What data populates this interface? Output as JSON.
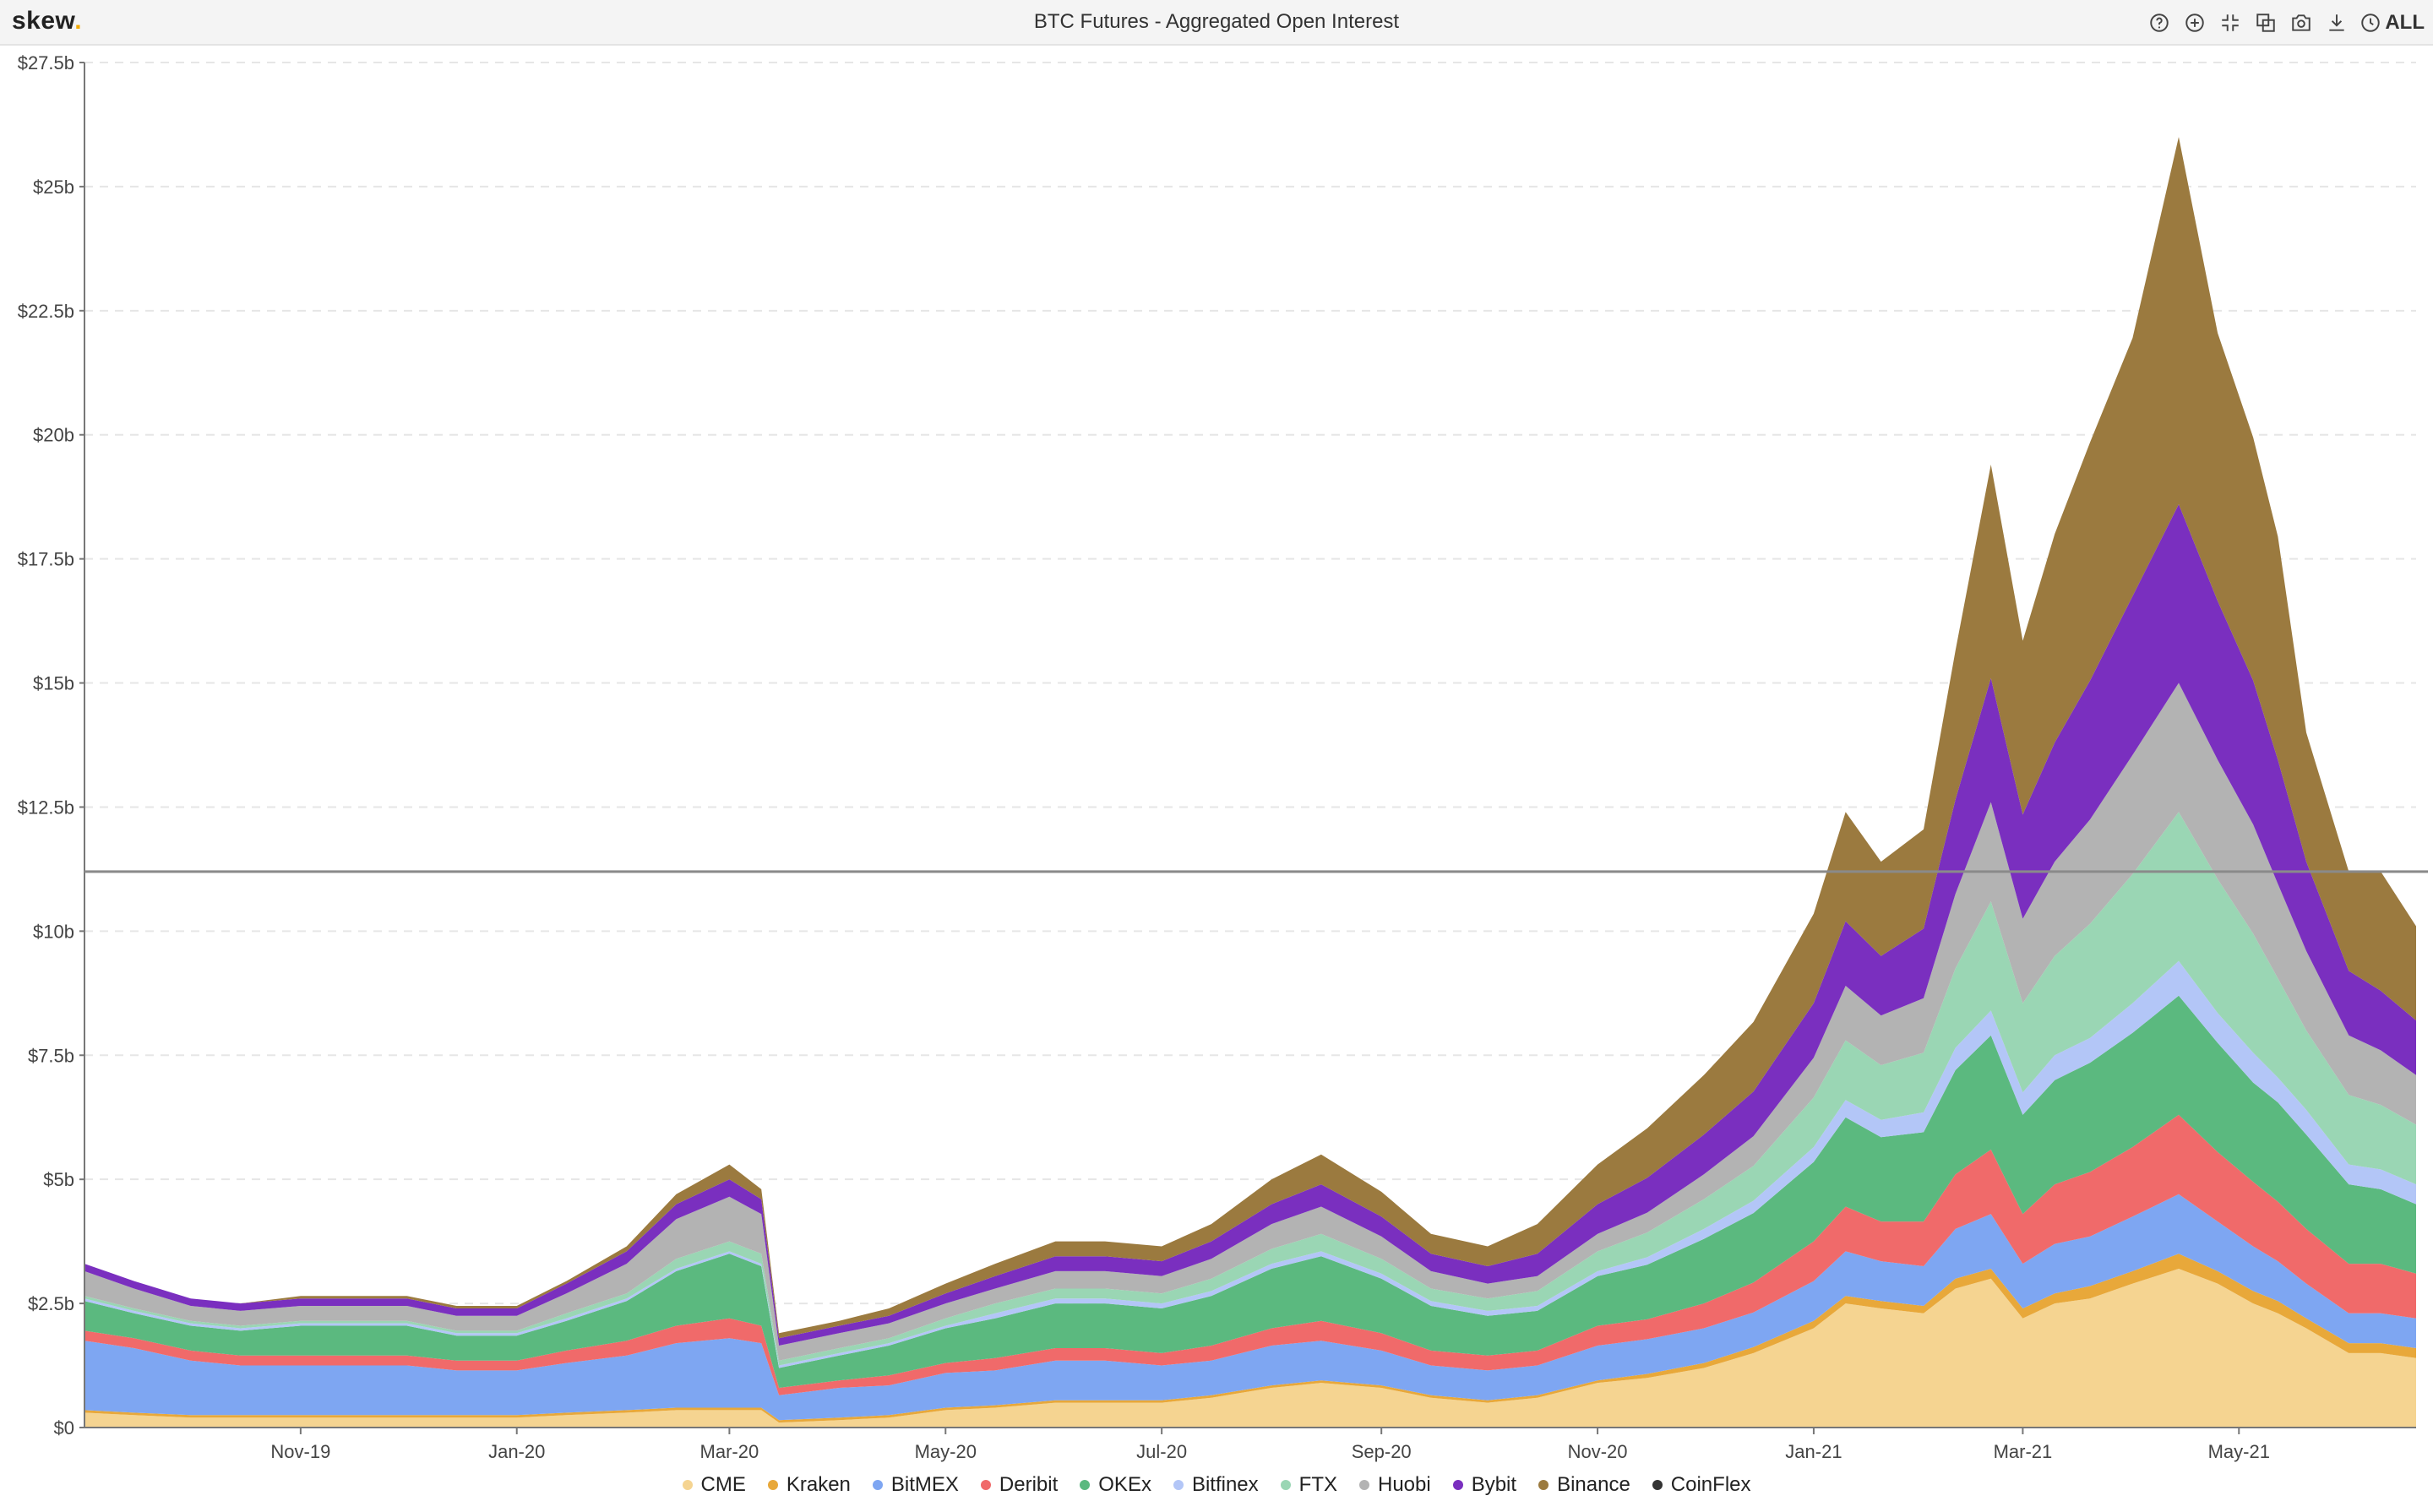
{
  "header": {
    "logo_text": "skew",
    "logo_dot": ".",
    "title": "BTC Futures - Aggregated Open Interest",
    "toolbar_icons": [
      "help-icon",
      "zoom-in-icon",
      "collapse-icon",
      "compare-icon",
      "camera-icon",
      "download-icon"
    ],
    "range_label": "ALL"
  },
  "chart_data": {
    "type": "area",
    "stacked": true,
    "title": "BTC Futures - Aggregated Open Interest",
    "y_ticks": [
      "$0",
      "$2.5b",
      "$5b",
      "$7.5b",
      "$10b",
      "$12.5b",
      "$15b",
      "$17.5b",
      "$20b",
      "$22.5b",
      "$25b",
      "$27.5b"
    ],
    "ylim": [
      0,
      27.5
    ],
    "y_unit": "$b",
    "x_ticks": [
      "Nov-19",
      "Jan-20",
      "Mar-20",
      "May-20",
      "Jul-20",
      "Sep-20",
      "Nov-20",
      "Jan-21",
      "Mar-21",
      "May-21"
    ],
    "x_range": [
      "2019-09-01",
      "2021-06-20"
    ],
    "reference_line": 11.2,
    "grid": true,
    "legend_position": "bottom",
    "x": [
      "2019-09-01",
      "2019-09-15",
      "2019-10-01",
      "2019-10-15",
      "2019-11-01",
      "2019-11-15",
      "2019-12-01",
      "2019-12-15",
      "2020-01-01",
      "2020-01-15",
      "2020-02-01",
      "2020-02-15",
      "2020-03-01",
      "2020-03-10",
      "2020-03-15",
      "2020-04-01",
      "2020-04-15",
      "2020-05-01",
      "2020-05-15",
      "2020-06-01",
      "2020-06-15",
      "2020-07-01",
      "2020-07-15",
      "2020-08-01",
      "2020-08-15",
      "2020-09-01",
      "2020-09-15",
      "2020-10-01",
      "2020-10-15",
      "2020-11-01",
      "2020-11-15",
      "2020-12-01",
      "2020-12-15",
      "2021-01-01",
      "2021-01-10",
      "2021-01-20",
      "2021-02-01",
      "2021-02-10",
      "2021-02-20",
      "2021-03-01",
      "2021-03-10",
      "2021-03-20",
      "2021-04-01",
      "2021-04-14",
      "2021-04-25",
      "2021-05-05",
      "2021-05-12",
      "2021-05-20",
      "2021-06-01",
      "2021-06-10",
      "2021-06-20"
    ],
    "series": [
      {
        "name": "CME",
        "color": "#f5d491",
        "values": [
          0.3,
          0.25,
          0.2,
          0.2,
          0.2,
          0.2,
          0.2,
          0.2,
          0.2,
          0.25,
          0.3,
          0.35,
          0.35,
          0.35,
          0.1,
          0.15,
          0.2,
          0.35,
          0.4,
          0.5,
          0.5,
          0.5,
          0.6,
          0.8,
          0.9,
          0.8,
          0.6,
          0.5,
          0.6,
          0.9,
          1.0,
          1.2,
          1.5,
          2.0,
          2.5,
          2.4,
          2.3,
          2.8,
          3.0,
          2.2,
          2.5,
          2.6,
          2.9,
          3.2,
          2.9,
          2.5,
          2.3,
          2.0,
          1.5,
          1.5,
          1.4
        ]
      },
      {
        "name": "Kraken",
        "color": "#e8a83a",
        "values": [
          0.05,
          0.05,
          0.05,
          0.05,
          0.05,
          0.05,
          0.05,
          0.05,
          0.05,
          0.05,
          0.05,
          0.05,
          0.05,
          0.05,
          0.05,
          0.05,
          0.05,
          0.05,
          0.05,
          0.05,
          0.05,
          0.05,
          0.05,
          0.05,
          0.05,
          0.05,
          0.05,
          0.05,
          0.05,
          0.05,
          0.08,
          0.1,
          0.12,
          0.15,
          0.15,
          0.15,
          0.15,
          0.2,
          0.2,
          0.2,
          0.2,
          0.25,
          0.25,
          0.3,
          0.25,
          0.25,
          0.25,
          0.2,
          0.2,
          0.2,
          0.2
        ]
      },
      {
        "name": "BitMEX",
        "color": "#7ea6f2",
        "values": [
          1.4,
          1.3,
          1.1,
          1.0,
          1.0,
          1.0,
          1.0,
          0.9,
          0.9,
          1.0,
          1.1,
          1.3,
          1.4,
          1.3,
          0.5,
          0.6,
          0.6,
          0.7,
          0.7,
          0.8,
          0.8,
          0.7,
          0.7,
          0.8,
          0.8,
          0.7,
          0.6,
          0.6,
          0.6,
          0.7,
          0.7,
          0.7,
          0.7,
          0.8,
          0.9,
          0.8,
          0.8,
          1.0,
          1.1,
          0.9,
          1.0,
          1.0,
          1.1,
          1.2,
          1.0,
          0.9,
          0.8,
          0.7,
          0.6,
          0.6,
          0.6
        ]
      },
      {
        "name": "Deribit",
        "color": "#f06a6a",
        "values": [
          0.2,
          0.2,
          0.2,
          0.2,
          0.2,
          0.2,
          0.2,
          0.2,
          0.2,
          0.25,
          0.3,
          0.35,
          0.4,
          0.35,
          0.15,
          0.15,
          0.2,
          0.2,
          0.25,
          0.25,
          0.25,
          0.25,
          0.3,
          0.35,
          0.4,
          0.35,
          0.3,
          0.3,
          0.3,
          0.4,
          0.4,
          0.5,
          0.6,
          0.8,
          0.9,
          0.8,
          0.9,
          1.1,
          1.3,
          1.0,
          1.2,
          1.3,
          1.4,
          1.6,
          1.4,
          1.3,
          1.2,
          1.1,
          1.0,
          1.0,
          0.9
        ]
      },
      {
        "name": "OKEx",
        "color": "#5bb97f",
        "values": [
          0.6,
          0.5,
          0.5,
          0.5,
          0.6,
          0.6,
          0.6,
          0.5,
          0.5,
          0.6,
          0.8,
          1.1,
          1.3,
          1.2,
          0.4,
          0.5,
          0.6,
          0.7,
          0.8,
          0.9,
          0.9,
          0.9,
          1.0,
          1.2,
          1.3,
          1.1,
          0.9,
          0.8,
          0.8,
          1.0,
          1.1,
          1.3,
          1.4,
          1.6,
          1.8,
          1.7,
          1.8,
          2.1,
          2.3,
          2.0,
          2.1,
          2.2,
          2.3,
          2.4,
          2.2,
          2.0,
          2.0,
          1.9,
          1.6,
          1.5,
          1.4
        ]
      },
      {
        "name": "Bitfinex",
        "color": "#b3c6f7",
        "values": [
          0.05,
          0.05,
          0.05,
          0.05,
          0.05,
          0.05,
          0.05,
          0.05,
          0.05,
          0.05,
          0.05,
          0.05,
          0.05,
          0.05,
          0.05,
          0.05,
          0.05,
          0.05,
          0.1,
          0.1,
          0.1,
          0.1,
          0.1,
          0.1,
          0.1,
          0.1,
          0.1,
          0.1,
          0.1,
          0.1,
          0.15,
          0.2,
          0.25,
          0.3,
          0.35,
          0.35,
          0.4,
          0.45,
          0.5,
          0.45,
          0.5,
          0.5,
          0.6,
          0.7,
          0.6,
          0.6,
          0.5,
          0.5,
          0.4,
          0.4,
          0.4
        ]
      },
      {
        "name": "FTX",
        "color": "#9ad6b4",
        "values": [
          0.05,
          0.05,
          0.05,
          0.05,
          0.05,
          0.05,
          0.05,
          0.05,
          0.05,
          0.1,
          0.1,
          0.2,
          0.2,
          0.2,
          0.1,
          0.1,
          0.1,
          0.15,
          0.2,
          0.2,
          0.2,
          0.2,
          0.25,
          0.3,
          0.35,
          0.3,
          0.25,
          0.25,
          0.3,
          0.4,
          0.5,
          0.6,
          0.7,
          1.0,
          1.2,
          1.1,
          1.2,
          1.6,
          2.2,
          1.8,
          2.0,
          2.3,
          2.6,
          3.0,
          2.7,
          2.4,
          2.0,
          1.6,
          1.4,
          1.3,
          1.2
        ]
      },
      {
        "name": "Huobi",
        "color": "#b3b3b3",
        "values": [
          0.5,
          0.4,
          0.3,
          0.3,
          0.3,
          0.3,
          0.3,
          0.3,
          0.3,
          0.4,
          0.6,
          0.8,
          0.9,
          0.8,
          0.3,
          0.3,
          0.3,
          0.3,
          0.3,
          0.35,
          0.35,
          0.35,
          0.4,
          0.5,
          0.55,
          0.45,
          0.35,
          0.3,
          0.3,
          0.35,
          0.4,
          0.5,
          0.6,
          0.8,
          1.1,
          1.0,
          1.1,
          1.5,
          2.0,
          1.7,
          1.9,
          2.1,
          2.4,
          2.6,
          2.4,
          2.2,
          1.9,
          1.6,
          1.2,
          1.1,
          1.0
        ]
      },
      {
        "name": "Bybit",
        "color": "#7a2fbf",
        "values": [
          0.15,
          0.15,
          0.15,
          0.15,
          0.15,
          0.15,
          0.15,
          0.15,
          0.15,
          0.2,
          0.25,
          0.3,
          0.35,
          0.3,
          0.15,
          0.15,
          0.15,
          0.2,
          0.25,
          0.3,
          0.3,
          0.3,
          0.35,
          0.4,
          0.45,
          0.4,
          0.35,
          0.35,
          0.45,
          0.6,
          0.7,
          0.8,
          0.9,
          1.1,
          1.3,
          1.2,
          1.4,
          1.9,
          2.5,
          2.1,
          2.4,
          2.8,
          3.2,
          3.6,
          3.2,
          2.9,
          2.5,
          1.8,
          1.3,
          1.2,
          1.1
        ]
      },
      {
        "name": "Binance",
        "color": "#9b7a3f",
        "values": [
          0.0,
          0.0,
          0.0,
          0.0,
          0.05,
          0.05,
          0.05,
          0.05,
          0.05,
          0.05,
          0.1,
          0.2,
          0.3,
          0.2,
          0.1,
          0.1,
          0.15,
          0.2,
          0.25,
          0.3,
          0.3,
          0.3,
          0.35,
          0.5,
          0.6,
          0.5,
          0.4,
          0.4,
          0.6,
          0.8,
          1.0,
          1.2,
          1.4,
          1.8,
          2.2,
          1.9,
          2.0,
          3.0,
          4.3,
          3.5,
          4.2,
          4.8,
          5.2,
          7.4,
          5.4,
          4.9,
          4.5,
          2.6,
          2.0,
          2.4,
          1.9
        ]
      },
      {
        "name": "CoinFlex",
        "color": "#333333",
        "values": [
          0,
          0,
          0,
          0,
          0,
          0,
          0,
          0,
          0,
          0,
          0,
          0,
          0,
          0,
          0,
          0,
          0,
          0,
          0,
          0,
          0,
          0,
          0,
          0,
          0,
          0,
          0,
          0,
          0,
          0,
          0,
          0,
          0,
          0,
          0,
          0,
          0,
          0,
          0,
          0,
          0,
          0,
          0,
          0,
          0,
          0,
          0,
          0,
          0,
          0,
          0
        ]
      }
    ]
  }
}
